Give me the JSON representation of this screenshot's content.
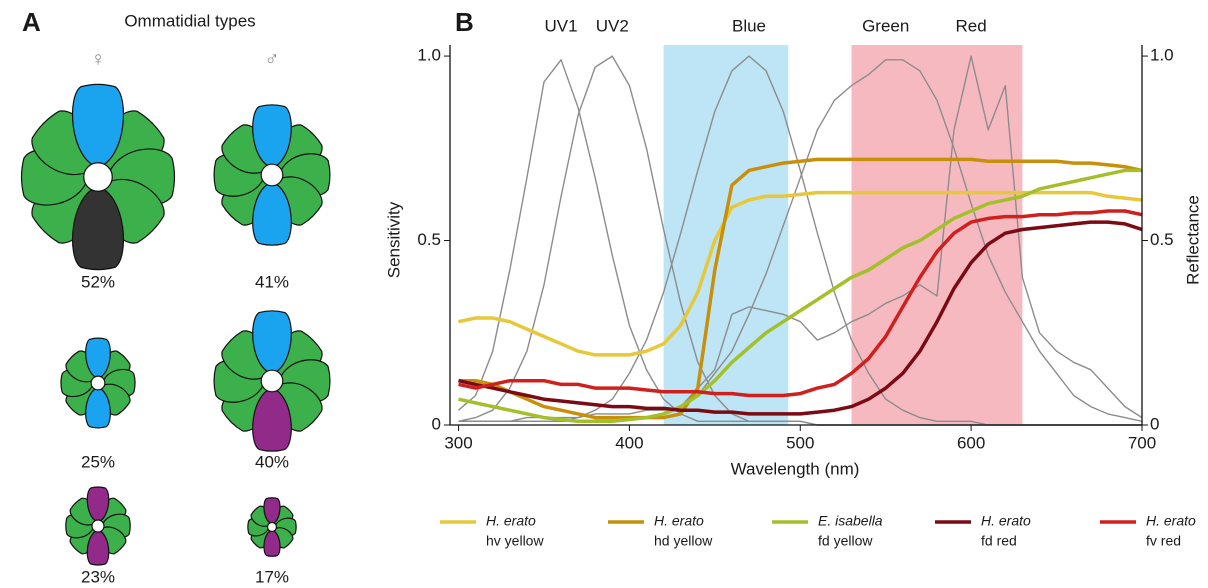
{
  "panel_a": {
    "label": "A",
    "title": "Ommatidial types",
    "columns": [
      {
        "symbol": "♀",
        "types": [
          {
            "percent": "52%",
            "top": "#1aa3ef",
            "bottom": "#333333"
          },
          {
            "percent": "25%",
            "top": "#1aa3ef",
            "bottom": "#1aa3ef"
          },
          {
            "percent": "23%",
            "top": "#922a8a",
            "bottom": "#922a8a"
          }
        ]
      },
      {
        "symbol": "♂",
        "types": [
          {
            "percent": "41%",
            "top": "#1aa3ef",
            "bottom": "#1aa3ef"
          },
          {
            "percent": "40%",
            "top": "#1aa3ef",
            "bottom": "#922a8a"
          },
          {
            "percent": "17%",
            "top": "#922a8a",
            "bottom": "#922a8a"
          }
        ]
      }
    ]
  },
  "chart_data": {
    "type": "line",
    "label": "B",
    "x_label": "Wavelength (nm)",
    "y_label": "Sensitivity",
    "y2_label": "Reflectance",
    "xlim": [
      295,
      700
    ],
    "ylim": [
      0,
      1.03
    ],
    "y2lim": [
      0,
      1.03
    ],
    "xticks": [
      300,
      400,
      500,
      600,
      700
    ],
    "yticks": [
      0,
      {
        "value": 0.5,
        "label": "0.5"
      },
      {
        "value": 1,
        "label": "1.0"
      }
    ],
    "y2ticks": [
      0,
      {
        "value": 0.5,
        "label": "0.5"
      },
      {
        "value": 1,
        "label": "1.0"
      }
    ],
    "bands": [
      {
        "from": 420,
        "to": 493,
        "color": "#bde5f5"
      },
      {
        "from": 530,
        "to": 630,
        "color": "#f7b9c0"
      }
    ],
    "x": [
      300,
      310,
      320,
      330,
      340,
      350,
      360,
      370,
      380,
      390,
      400,
      410,
      420,
      430,
      440,
      450,
      460,
      470,
      480,
      490,
      500,
      510,
      520,
      530,
      540,
      550,
      560,
      570,
      580,
      590,
      600,
      610,
      620,
      630,
      640,
      650,
      660,
      670,
      680,
      690,
      700
    ],
    "series": [
      {
        "name": "UV1",
        "color": "#8c8c8c",
        "values": [
          0.04,
          0.08,
          0.2,
          0.42,
          0.67,
          0.93,
          0.99,
          0.86,
          0.67,
          0.46,
          0.27,
          0.15,
          0.07,
          0.03,
          0.01,
          0.01,
          0.01,
          0.01,
          0.01,
          0.01,
          0.01,
          0,
          0,
          0,
          0,
          0,
          0,
          0,
          0,
          0,
          0,
          0,
          0,
          0,
          0,
          0,
          0,
          0,
          0,
          0,
          0
        ]
      },
      {
        "name": "UV2",
        "color": "#8c8c8c",
        "values": [
          0.01,
          0.02,
          0.04,
          0.1,
          0.2,
          0.38,
          0.62,
          0.84,
          0.97,
          1,
          0.92,
          0.75,
          0.53,
          0.33,
          0.17,
          0.08,
          0.03,
          0.01,
          0.01,
          0.01,
          0.01,
          0,
          0,
          0,
          0,
          0,
          0,
          0,
          0,
          0,
          0,
          0,
          0,
          0,
          0,
          0,
          0,
          0,
          0,
          0,
          0
        ]
      },
      {
        "name": "Blue",
        "color": "#8c8c8c",
        "values": [
          0.01,
          0.01,
          0.01,
          0.01,
          0.01,
          0.01,
          0.01,
          0.02,
          0.04,
          0.07,
          0.14,
          0.23,
          0.36,
          0.52,
          0.69,
          0.85,
          0.96,
          1,
          0.96,
          0.85,
          0.69,
          0.52,
          0.36,
          0.23,
          0.14,
          0.07,
          0.04,
          0.02,
          0.01,
          0.01,
          0.01,
          0,
          0,
          0,
          0,
          0,
          0,
          0,
          0,
          0,
          0
        ]
      },
      {
        "name": "Green",
        "color": "#8c8c8c",
        "values": [
          0.01,
          0.01,
          0.01,
          0.01,
          0.01,
          0.01,
          0.01,
          0.01,
          0.01,
          0.01,
          0.02,
          0.02,
          0.03,
          0.05,
          0.08,
          0.14,
          0.2,
          0.3,
          0.41,
          0.54,
          0.67,
          0.8,
          0.88,
          0.92,
          0.95,
          0.99,
          0.99,
          0.96,
          0.88,
          0.75,
          0.6,
          0.46,
          0.36,
          0.28,
          0.2,
          0.14,
          0.08,
          0.05,
          0.03,
          0.02,
          0.01
        ]
      },
      {
        "name": "Red",
        "color": "#8c8c8c",
        "values": [
          0.01,
          0.01,
          0.01,
          0.01,
          0.02,
          0.02,
          0.02,
          0.02,
          0.03,
          0.03,
          0.03,
          0.04,
          0.04,
          0.05,
          0.1,
          0.15,
          0.3,
          0.32,
          0.31,
          0.3,
          0.28,
          0.23,
          0.25,
          0.28,
          0.3,
          0.33,
          0.35,
          0.38,
          0.35,
          0.8,
          1,
          0.8,
          0.92,
          0.4,
          0.25,
          0.2,
          0.17,
          0.15,
          0.1,
          0.05,
          0.02
        ]
      },
      {
        "name": "H. erato",
        "subname": "hv yellow",
        "color": "#e6c83a",
        "axis": "y2",
        "values": [
          0.28,
          0.29,
          0.29,
          0.28,
          0.26,
          0.24,
          0.22,
          0.2,
          0.19,
          0.19,
          0.19,
          0.2,
          0.22,
          0.27,
          0.36,
          0.5,
          0.59,
          0.61,
          0.62,
          0.62,
          0.625,
          0.63,
          0.63,
          0.63,
          0.63,
          0.63,
          0.63,
          0.63,
          0.63,
          0.63,
          0.63,
          0.63,
          0.63,
          0.63,
          0.63,
          0.63,
          0.63,
          0.63,
          0.62,
          0.615,
          0.61
        ]
      },
      {
        "name": "H. erato",
        "subname": "hd yellow",
        "color": "#c8900a",
        "axis": "y2",
        "values": [
          0.12,
          0.12,
          0.11,
          0.09,
          0.07,
          0.05,
          0.04,
          0.03,
          0.02,
          0.02,
          0.02,
          0.02,
          0.02,
          0.03,
          0.1,
          0.42,
          0.65,
          0.69,
          0.7,
          0.71,
          0.715,
          0.72,
          0.72,
          0.72,
          0.72,
          0.72,
          0.72,
          0.72,
          0.72,
          0.72,
          0.72,
          0.715,
          0.715,
          0.715,
          0.715,
          0.715,
          0.71,
          0.71,
          0.705,
          0.7,
          0.69
        ]
      },
      {
        "name": "E. isabella",
        "subname": "fd yellow",
        "color": "#a3c02a",
        "axis": "y2",
        "values": [
          0.07,
          0.06,
          0.05,
          0.04,
          0.03,
          0.02,
          0.015,
          0.01,
          0.01,
          0.01,
          0.015,
          0.02,
          0.03,
          0.05,
          0.08,
          0.12,
          0.17,
          0.21,
          0.25,
          0.28,
          0.31,
          0.34,
          0.37,
          0.4,
          0.42,
          0.45,
          0.48,
          0.5,
          0.53,
          0.56,
          0.58,
          0.6,
          0.61,
          0.62,
          0.64,
          0.65,
          0.66,
          0.67,
          0.68,
          0.69,
          0.69
        ]
      },
      {
        "name": "H. erato",
        "subname": "fd red",
        "color": "#7a0a14",
        "axis": "y2",
        "values": [
          0.12,
          0.11,
          0.1,
          0.09,
          0.08,
          0.07,
          0.065,
          0.06,
          0.055,
          0.05,
          0.05,
          0.045,
          0.045,
          0.04,
          0.04,
          0.035,
          0.035,
          0.03,
          0.03,
          0.03,
          0.03,
          0.035,
          0.04,
          0.05,
          0.07,
          0.1,
          0.14,
          0.2,
          0.28,
          0.37,
          0.44,
          0.49,
          0.52,
          0.53,
          0.535,
          0.54,
          0.545,
          0.55,
          0.55,
          0.545,
          0.53
        ]
      },
      {
        "name": "H. erato",
        "subname": "fv red",
        "color": "#d0201e",
        "axis": "y2",
        "values": [
          0.11,
          0.1,
          0.11,
          0.12,
          0.12,
          0.12,
          0.11,
          0.11,
          0.1,
          0.1,
          0.1,
          0.095,
          0.09,
          0.09,
          0.09,
          0.085,
          0.085,
          0.08,
          0.08,
          0.08,
          0.085,
          0.1,
          0.11,
          0.14,
          0.18,
          0.24,
          0.32,
          0.4,
          0.47,
          0.52,
          0.55,
          0.56,
          0.565,
          0.565,
          0.57,
          0.57,
          0.575,
          0.575,
          0.58,
          0.58,
          0.57
        ]
      }
    ]
  }
}
